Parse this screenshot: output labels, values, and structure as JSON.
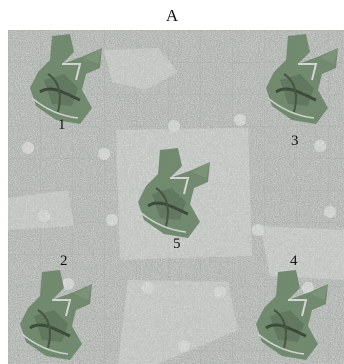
{
  "figure": {
    "title": "A",
    "labels": [
      "1",
      "2",
      "3",
      "4",
      "5"
    ]
  },
  "colors": {
    "background": "#d6d7d6",
    "noise": "#8f918f",
    "fragment": "#6f8a6c",
    "fragment_dark": "#4b6146",
    "grid": "#c3c4c3"
  }
}
